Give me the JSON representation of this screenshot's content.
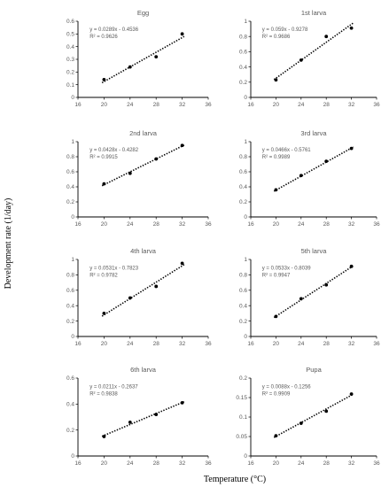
{
  "figure": {
    "ylabel": "Development rate (1/day)",
    "xlabel": "Temperature (°C)"
  },
  "colors": {
    "axis": "#000000",
    "text": "#595959",
    "point": "#000000",
    "trend": "#000000"
  },
  "chart_data": [
    {
      "type": "scatter",
      "title": "Egg",
      "x": [
        20,
        24,
        28,
        32
      ],
      "y": [
        0.14,
        0.24,
        0.32,
        0.5
      ],
      "xlim": [
        16,
        36
      ],
      "xticks": [
        "16",
        "20",
        "24",
        "28",
        "32",
        "36"
      ],
      "ylim": [
        0,
        0.6
      ],
      "yticks": [
        "0",
        "0.1",
        "0.2",
        "0.3",
        "0.4",
        "0.5",
        "0.6"
      ],
      "trendline": {
        "slope": 0.0289,
        "intercept": -0.4536
      },
      "equation": "y = 0.0289x - 0.4536",
      "r2": "R² = 0.9626",
      "grid": false
    },
    {
      "type": "scatter",
      "title": "1st larva",
      "x": [
        20,
        24,
        28,
        32
      ],
      "y": [
        0.23,
        0.49,
        0.8,
        0.91
      ],
      "xlim": [
        16,
        36
      ],
      "xticks": [
        "16",
        "20",
        "24",
        "28",
        "32",
        "36"
      ],
      "ylim": [
        0,
        1
      ],
      "yticks": [
        "0",
        "0.2",
        "0.4",
        "0.6",
        "0.8",
        "1"
      ],
      "trendline": {
        "slope": 0.059,
        "intercept": -0.9278
      },
      "equation": "y = 0.059x - 0.9278",
      "r2": "R² = 0.9686",
      "grid": false
    },
    {
      "type": "scatter",
      "title": "2nd larva",
      "x": [
        20,
        24,
        28,
        32
      ],
      "y": [
        0.44,
        0.58,
        0.77,
        0.95
      ],
      "xlim": [
        16,
        36
      ],
      "xticks": [
        "16",
        "20",
        "24",
        "28",
        "32",
        "36"
      ],
      "ylim": [
        0,
        1
      ],
      "yticks": [
        "0",
        "0.2",
        "0.4",
        "0.6",
        "0.8",
        "1"
      ],
      "trendline": {
        "slope": 0.0428,
        "intercept": -0.4282
      },
      "equation": "y = 0.0428x - 0.4282",
      "r2": "R² = 0.9915",
      "grid": false
    },
    {
      "type": "scatter",
      "title": "3rd larva",
      "x": [
        20,
        24,
        28,
        32
      ],
      "y": [
        0.36,
        0.55,
        0.74,
        0.91
      ],
      "xlim": [
        16,
        36
      ],
      "xticks": [
        "16",
        "20",
        "24",
        "28",
        "32",
        "36"
      ],
      "ylim": [
        0,
        1
      ],
      "yticks": [
        "0",
        "0.2",
        "0.4",
        "0.6",
        "0.8",
        "1"
      ],
      "trendline": {
        "slope": 0.0466,
        "intercept": -0.5761
      },
      "equation": "y = 0.0466x - 0.5761",
      "r2": "R² = 0.9989",
      "grid": false
    },
    {
      "type": "scatter",
      "title": "4th larva",
      "x": [
        20,
        24,
        28,
        32
      ],
      "y": [
        0.3,
        0.5,
        0.65,
        0.95
      ],
      "xlim": [
        16,
        36
      ],
      "xticks": [
        "16",
        "20",
        "24",
        "28",
        "32",
        "36"
      ],
      "ylim": [
        0,
        1
      ],
      "yticks": [
        "0",
        "0.2",
        "0.4",
        "0.6",
        "0.8",
        "1"
      ],
      "trendline": {
        "slope": 0.0531,
        "intercept": -0.7823
      },
      "equation": "y = 0.0531x - 0.7823",
      "r2": "R² = 0.9782",
      "grid": false
    },
    {
      "type": "scatter",
      "title": "5th larva",
      "x": [
        20,
        24,
        28,
        32
      ],
      "y": [
        0.26,
        0.49,
        0.67,
        0.91
      ],
      "xlim": [
        16,
        36
      ],
      "xticks": [
        "16",
        "20",
        "24",
        "28",
        "32",
        "36"
      ],
      "ylim": [
        0,
        1
      ],
      "yticks": [
        "0",
        "0.2",
        "0.4",
        "0.6",
        "0.8",
        "1"
      ],
      "trendline": {
        "slope": 0.0533,
        "intercept": -0.8039
      },
      "equation": "y = 0.0533x - 0.8039",
      "r2": "R² = 0.9947",
      "grid": false
    },
    {
      "type": "scatter",
      "title": "6th larva",
      "x": [
        20,
        24,
        28,
        32
      ],
      "y": [
        0.15,
        0.26,
        0.32,
        0.41
      ],
      "xlim": [
        16,
        36
      ],
      "xticks": [
        "16",
        "20",
        "24",
        "28",
        "32",
        "36"
      ],
      "ylim": [
        0,
        0.6
      ],
      "yticks": [
        "0",
        "0.2",
        "0.4",
        "0.6"
      ],
      "trendline": {
        "slope": 0.0211,
        "intercept": -0.2637
      },
      "equation": "y = 0.0211x - 0.2637",
      "r2": "R² = 0.9838",
      "grid": false
    },
    {
      "type": "scatter",
      "title": "Pupa",
      "x": [
        20,
        24,
        28,
        32
      ],
      "y": [
        0.052,
        0.084,
        0.115,
        0.159
      ],
      "xlim": [
        16,
        36
      ],
      "xticks": [
        "16",
        "20",
        "24",
        "28",
        "32",
        "36"
      ],
      "ylim": [
        0,
        0.2
      ],
      "yticks": [
        "0",
        "0.05",
        "0.1",
        "0.15",
        "0.2"
      ],
      "trendline": {
        "slope": 0.0088,
        "intercept": -0.1256
      },
      "equation": "y = 0.0088x - 0.1256",
      "r2": "R² = 0.9909",
      "grid": false
    }
  ]
}
